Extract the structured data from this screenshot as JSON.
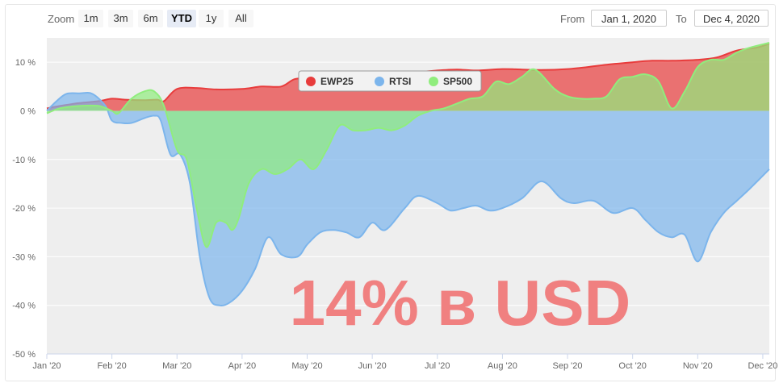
{
  "toolbar": {
    "zoom_label": "Zoom",
    "buttons": [
      "1m",
      "3m",
      "6m",
      "YTD",
      "1y",
      "All"
    ],
    "active_button": "YTD",
    "from_label": "From",
    "from_value": "Jan 1, 2020",
    "to_label": "To",
    "to_value": "Dec 4, 2020"
  },
  "overlay_text": "14% в USD",
  "colors": {
    "EWP25": "#e83c3c",
    "RTSI": "#7cb5ec",
    "SP500": "#90ed7d",
    "overlay": "#f08080"
  },
  "chart_data": {
    "type": "area",
    "x_unit": "month index (0 = Jan 1, 2020)",
    "xlim": [
      0,
      11.1
    ],
    "ylim": [
      -50,
      15
    ],
    "y_ticks": [
      10,
      0,
      -10,
      -20,
      -30,
      -40,
      -50
    ],
    "y_tick_labels": [
      "10 %",
      "0 %",
      "-10 %",
      "-20 %",
      "-30 %",
      "-40 %",
      "-50 %"
    ],
    "x_ticks": [
      0,
      1,
      2,
      3,
      4,
      5,
      6,
      7,
      8,
      9,
      10,
      11
    ],
    "x_tick_labels": [
      "Jan '20",
      "Feb '20",
      "Mar '20",
      "Apr '20",
      "May '20",
      "Jun '20",
      "Jul '20",
      "Aug '20",
      "Sep '20",
      "Oct '20",
      "Nov '20",
      "Dec '20"
    ],
    "legend_position": "top-center",
    "series": [
      {
        "name": "EWP25",
        "x": [
          0,
          0.2,
          0.5,
          0.8,
          1.0,
          1.2,
          1.5,
          1.7,
          1.8,
          2.0,
          2.3,
          2.6,
          3.0,
          3.3,
          3.6,
          3.8,
          4.0,
          4.3,
          4.6,
          5.0,
          5.3,
          5.6,
          6.0,
          6.3,
          6.6,
          7.0,
          7.3,
          7.6,
          8.0,
          8.3,
          8.6,
          9.0,
          9.3,
          9.6,
          10.0,
          10.3,
          10.6,
          10.9,
          11.1
        ],
        "values": [
          0.5,
          1.0,
          1.6,
          2.0,
          2.5,
          2.3,
          2.2,
          2.3,
          2.0,
          4.5,
          4.7,
          4.4,
          4.5,
          5.0,
          5.0,
          6.5,
          6.7,
          7.0,
          7.5,
          7.3,
          7.3,
          7.8,
          8.3,
          8.5,
          8.3,
          8.6,
          8.5,
          8.4,
          8.6,
          9.0,
          9.5,
          10.0,
          10.3,
          10.3,
          10.5,
          11.0,
          12.4,
          13.0,
          13.8
        ]
      },
      {
        "name": "RTSI",
        "x": [
          0,
          0.15,
          0.3,
          0.5,
          0.7,
          0.9,
          1.0,
          1.15,
          1.3,
          1.5,
          1.65,
          1.75,
          1.9,
          2.05,
          2.2,
          2.35,
          2.5,
          2.65,
          2.8,
          3.0,
          3.2,
          3.4,
          3.6,
          3.85,
          4.0,
          4.2,
          4.4,
          4.6,
          4.8,
          5.0,
          5.2,
          5.5,
          5.7,
          6.0,
          6.2,
          6.4,
          6.6,
          6.8,
          7.0,
          7.3,
          7.6,
          7.9,
          8.1,
          8.4,
          8.7,
          9.0,
          9.2,
          9.4,
          9.6,
          9.8,
          10.0,
          10.2,
          10.4,
          10.6,
          10.8,
          11.1
        ],
        "values": [
          0,
          2.0,
          3.5,
          3.6,
          3.5,
          1.0,
          -2.0,
          -2.5,
          -2.5,
          -1.5,
          -1.0,
          -2.0,
          -9.0,
          -9.0,
          -15.0,
          -30.0,
          -38.5,
          -40.0,
          -39.5,
          -37.0,
          -32.5,
          -26.0,
          -29.5,
          -30.0,
          -27.5,
          -25.0,
          -24.5,
          -25.0,
          -26.0,
          -23.0,
          -24.5,
          -20.0,
          -17.5,
          -19.0,
          -20.5,
          -20.0,
          -19.5,
          -20.5,
          -20.0,
          -18.0,
          -14.5,
          -18.0,
          -19.0,
          -18.5,
          -21.0,
          -20.0,
          -22.5,
          -25.0,
          -26.0,
          -25.5,
          -31.0,
          -25.0,
          -21.0,
          -18.5,
          -16.0,
          -12.0
        ]
      },
      {
        "name": "SP500",
        "x": [
          0,
          0.2,
          0.5,
          0.8,
          1.0,
          1.1,
          1.3,
          1.5,
          1.65,
          1.8,
          2.0,
          2.15,
          2.3,
          2.45,
          2.6,
          2.75,
          2.85,
          2.95,
          3.1,
          3.3,
          3.5,
          3.7,
          3.9,
          4.1,
          4.3,
          4.5,
          4.7,
          4.9,
          5.1,
          5.3,
          5.5,
          5.7,
          5.9,
          6.1,
          6.3,
          6.5,
          6.7,
          6.9,
          7.1,
          7.3,
          7.5,
          7.8,
          8.0,
          8.2,
          8.4,
          8.6,
          8.8,
          9.0,
          9.2,
          9.4,
          9.6,
          9.8,
          10.0,
          10.2,
          10.4,
          10.6,
          10.8,
          11.1
        ],
        "values": [
          -0.5,
          0.5,
          1.0,
          1.0,
          0.0,
          -0.5,
          2.5,
          4.0,
          4.0,
          1.0,
          -8.0,
          -10.0,
          -20.0,
          -28.0,
          -23.0,
          -23.0,
          -24.5,
          -22.0,
          -15.0,
          -12.0,
          -13.0,
          -12.0,
          -10.0,
          -12.0,
          -8.0,
          -3.0,
          -4.0,
          -4.0,
          -3.5,
          -4.0,
          -3.0,
          -1.0,
          0.0,
          0.5,
          1.5,
          2.5,
          3.0,
          6.0,
          5.5,
          7.0,
          8.5,
          4.5,
          3.0,
          2.5,
          2.5,
          3.0,
          6.5,
          7.0,
          7.5,
          6.0,
          0.5,
          4.0,
          9.0,
          10.5,
          10.5,
          12.0,
          13.0,
          14.0
        ]
      }
    ]
  }
}
